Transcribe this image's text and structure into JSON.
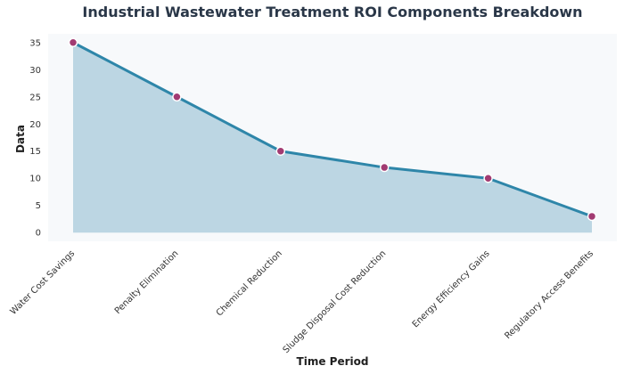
{
  "chart_data": {
    "type": "area",
    "title": "Industrial Wastewater Treatment ROI Components Breakdown",
    "xlabel": "Time Period",
    "ylabel": "Data",
    "categories": [
      "Water Cost Savings",
      "Penalty Elimination",
      "Chemical Reduction",
      "Sludge Disposal Cost Reduction",
      "Energy Efficiency Gains",
      "Regulatory Access Benefits"
    ],
    "values": [
      35,
      25,
      15,
      12,
      10,
      3
    ],
    "ylim": [
      -1.6,
      36.6
    ],
    "yticks": [
      0,
      5,
      10,
      15,
      20,
      25,
      30,
      35
    ],
    "grid": false,
    "colors": {
      "line": "#2e86a9",
      "fill": "#bcd6e3",
      "marker": "#a23b72",
      "marker_edge": "#ffffff",
      "plot_bg": "#f7f9fb"
    }
  }
}
